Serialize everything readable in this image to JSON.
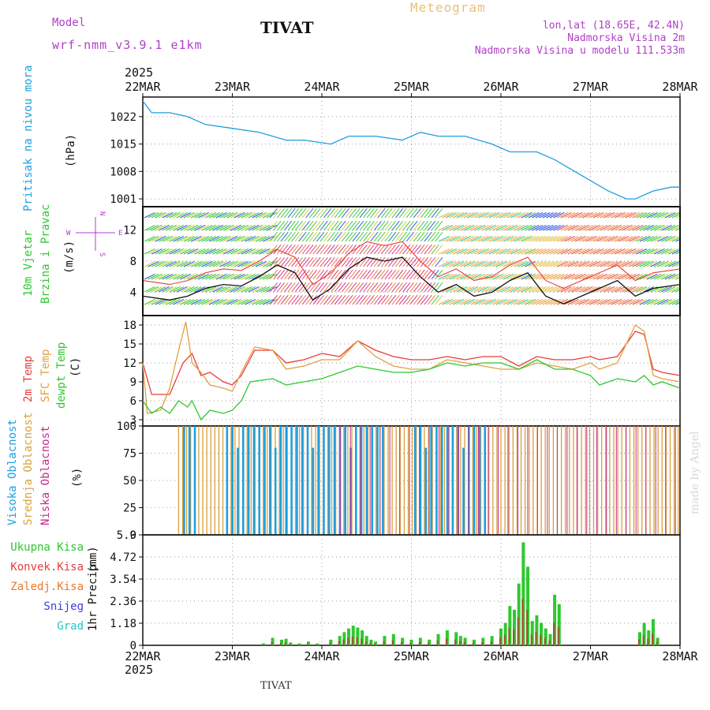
{
  "header": {
    "model_label": "Model",
    "model_name": "wrf-nmm_v3.9.1 e1km",
    "station": "TIVAT",
    "product": "Meteogram",
    "lonlat": "lon,lat (18.65E, 42.4N)",
    "altitude": "Nadmorska Visina 2m",
    "model_altitude": "Nadmorska Visina u modelu 111.533m",
    "year_top": "2025",
    "year_bottom": "2025",
    "footer_station": "TIVAT",
    "credit": "made by Angel"
  },
  "colors": {
    "pressure": "#1e9fe0",
    "temp2m": "#e83c3c",
    "sfc": "#e0a040",
    "dew": "#2ec82e",
    "high_cloud": "#1e9fe0",
    "mid_cloud": "#d8a040",
    "low_cloud": "#c8288c",
    "snow": "#3c3cd8",
    "hail": "#20c8c8",
    "conv": "#e83c3c",
    "frz": "#e8782c",
    "purple": "#b040c8",
    "orange": "#e8c078"
  },
  "chart_data": [
    {
      "id": "pressure",
      "type": "line",
      "ylabel": "Pritisak na nivou mora",
      "yunit": "(hPa)",
      "x_ticks": [
        "22MAR",
        "23MAR",
        "24MAR",
        "25MAR",
        "26MAR",
        "27MAR",
        "28MAR"
      ],
      "ylim": [
        999,
        1027
      ],
      "y_ticks": [
        1001,
        1008,
        1015,
        1022
      ],
      "grid": true,
      "x": [
        0,
        0.1,
        0.3,
        0.5,
        0.7,
        1.0,
        1.3,
        1.6,
        1.8,
        2.1,
        2.3,
        2.6,
        2.9,
        3.1,
        3.3,
        3.6,
        3.9,
        4.1,
        4.4,
        4.6,
        4.9,
        5.2,
        5.4,
        5.5,
        5.7,
        5.9,
        6.0
      ],
      "values": [
        1026,
        1023,
        1023,
        1022,
        1020,
        1019,
        1018,
        1016,
        1016,
        1015,
        1017,
        1017,
        1016,
        1018,
        1017,
        1017,
        1015,
        1013,
        1013,
        1011,
        1007,
        1003,
        1001,
        1001,
        1003,
        1004,
        1004
      ]
    },
    {
      "id": "wind",
      "type": "line",
      "ylabel": "10m Vjetar",
      "ylabel2": "Brzina i Pravac",
      "yunit": "(m/s)",
      "compass": [
        "N",
        "S",
        "W",
        "E"
      ],
      "ylim": [
        1,
        15
      ],
      "y_ticks": [
        4,
        8,
        12
      ],
      "grid": true,
      "x": [
        0,
        0.3,
        0.5,
        0.7,
        0.9,
        1.1,
        1.3,
        1.5,
        1.7,
        1.9,
        2.1,
        2.3,
        2.5,
        2.7,
        2.9,
        3.1,
        3.3,
        3.5,
        3.7,
        3.9,
        4.1,
        4.3,
        4.5,
        4.7,
        5.0,
        5.3,
        5.5,
        5.7,
        6.0
      ],
      "values": [
        3.5,
        3.0,
        3.5,
        4.5,
        5.0,
        4.8,
        6.0,
        7.5,
        6.5,
        3.0,
        4.5,
        7.0,
        8.5,
        8.0,
        8.5,
        6.0,
        4.0,
        5.0,
        3.5,
        4.0,
        5.5,
        6.5,
        3.5,
        2.5,
        4.0,
        5.5,
        3.5,
        4.5,
        5.0
      ]
    },
    {
      "id": "temp",
      "type": "line",
      "ylabel": "2m Temp",
      "ylabel2": "SFC Temp",
      "ylabel3": "dewpt Temp",
      "yunit": "(C)",
      "ylim": [
        2,
        19.5
      ],
      "y_ticks": [
        3,
        6,
        9,
        12,
        15,
        18
      ],
      "grid": true,
      "series": [
        {
          "key": "t2m",
          "x": [
            0,
            0.1,
            0.3,
            0.45,
            0.55,
            0.65,
            0.75,
            0.9,
            1.0,
            1.1,
            1.25,
            1.45,
            1.6,
            1.8,
            2.0,
            2.2,
            2.4,
            2.6,
            2.8,
            3.0,
            3.2,
            3.4,
            3.6,
            3.8,
            4.0,
            4.2,
            4.4,
            4.6,
            4.8,
            5.0,
            5.1,
            5.3,
            5.5,
            5.6,
            5.7,
            5.8,
            6.0
          ],
          "values": [
            12,
            7,
            7,
            12,
            13.5,
            10,
            10.5,
            9,
            8.5,
            10,
            14,
            14,
            12,
            12.5,
            13.5,
            13,
            15.5,
            14,
            13,
            12.5,
            12.5,
            13,
            12.5,
            13,
            13,
            11.5,
            13,
            12.5,
            12.5,
            13,
            12.5,
            13,
            17,
            16.5,
            11,
            10.5,
            10
          ]
        },
        {
          "key": "sfc",
          "x": [
            0,
            0.05,
            0.2,
            0.3,
            0.4,
            0.48,
            0.55,
            0.65,
            0.75,
            0.9,
            1.0,
            1.1,
            1.25,
            1.45,
            1.6,
            1.8,
            2.0,
            2.2,
            2.4,
            2.6,
            2.8,
            3.0,
            3.2,
            3.4,
            3.6,
            3.8,
            4.0,
            4.2,
            4.4,
            4.6,
            4.8,
            5.0,
            5.1,
            5.3,
            5.5,
            5.6,
            5.7,
            5.8,
            6.0
          ],
          "values": [
            12,
            4,
            4.5,
            8,
            14,
            18.5,
            12,
            10.5,
            8.5,
            8,
            7.5,
            10.5,
            14.5,
            14,
            11,
            11.5,
            12.5,
            12.5,
            15.5,
            13,
            11.5,
            11,
            11,
            12.5,
            12,
            11.5,
            11,
            11,
            12,
            11.5,
            11,
            12,
            11,
            12,
            18,
            17,
            10,
            9.5,
            9
          ]
        },
        {
          "key": "dew",
          "x": [
            0,
            0.1,
            0.2,
            0.3,
            0.4,
            0.5,
            0.55,
            0.65,
            0.75,
            0.9,
            1.0,
            1.1,
            1.2,
            1.45,
            1.6,
            1.8,
            2.0,
            2.2,
            2.4,
            2.6,
            2.8,
            3.0,
            3.2,
            3.4,
            3.6,
            3.8,
            4.0,
            4.2,
            4.4,
            4.6,
            4.8,
            5.0,
            5.1,
            5.3,
            5.5,
            5.6,
            5.7,
            5.8,
            6.0
          ],
          "values": [
            6,
            4,
            5,
            4,
            6,
            5,
            6,
            3,
            4.5,
            4,
            4.5,
            6,
            9,
            9.5,
            8.5,
            9,
            9.5,
            10.5,
            11.5,
            11,
            10.5,
            10.5,
            11,
            12,
            11.5,
            12,
            12,
            11,
            12.5,
            11,
            11,
            10,
            8.5,
            9.5,
            9,
            10,
            8.5,
            9,
            8
          ]
        }
      ]
    },
    {
      "id": "cloud",
      "type": "bar",
      "ylabel": "Visoka Oblacnost",
      "ylabel2": "Srednja Oblacnost",
      "ylabel3": "Niska Oblacnost",
      "yunit": "(%)",
      "ylim": [
        0,
        100
      ],
      "y_ticks": [
        0,
        25,
        50,
        75,
        100
      ],
      "grid": true,
      "high_range": [
        0.45,
        3.85
      ],
      "mid_range": [
        0.4,
        6.0
      ],
      "low_range": [
        2.2,
        6.0
      ]
    },
    {
      "id": "precip",
      "type": "bar",
      "ylabel": "1hr Precip",
      "yunit": "(mm)",
      "legend": [
        "Ukupna Kisa",
        "Konvek.Kisa",
        "Zaledj.Kisa",
        "Snijeg",
        "Grad"
      ],
      "ylim": [
        0,
        5.9
      ],
      "y_ticks": [
        0,
        1.18,
        2.36,
        3.54,
        4.72,
        5.9
      ],
      "grid": true,
      "x": [
        1.35,
        1.45,
        1.55,
        1.6,
        1.65,
        1.75,
        1.85,
        1.95,
        2.1,
        2.2,
        2.25,
        2.3,
        2.35,
        2.4,
        2.45,
        2.5,
        2.55,
        2.6,
        2.7,
        2.8,
        2.9,
        3.0,
        3.1,
        3.2,
        3.3,
        3.4,
        3.5,
        3.55,
        3.6,
        3.7,
        3.8,
        3.9,
        4.0,
        4.05,
        4.1,
        4.15,
        4.2,
        4.25,
        4.3,
        4.35,
        4.4,
        4.45,
        4.5,
        4.55,
        4.6,
        4.65,
        5.55,
        5.6,
        5.65,
        5.7,
        5.75
      ],
      "values": [
        0.1,
        0.4,
        0.3,
        0.35,
        0.15,
        0.1,
        0.2,
        0.1,
        0.3,
        0.5,
        0.7,
        0.9,
        1.05,
        0.95,
        0.8,
        0.5,
        0.3,
        0.2,
        0.5,
        0.6,
        0.4,
        0.3,
        0.4,
        0.3,
        0.6,
        0.8,
        0.7,
        0.5,
        0.4,
        0.3,
        0.4,
        0.5,
        0.9,
        1.2,
        2.1,
        1.9,
        3.3,
        5.5,
        4.2,
        1.3,
        1.6,
        1.2,
        0.9,
        0.6,
        2.7,
        2.2,
        0.7,
        1.2,
        0.8,
        1.4,
        0.4
      ]
    }
  ]
}
